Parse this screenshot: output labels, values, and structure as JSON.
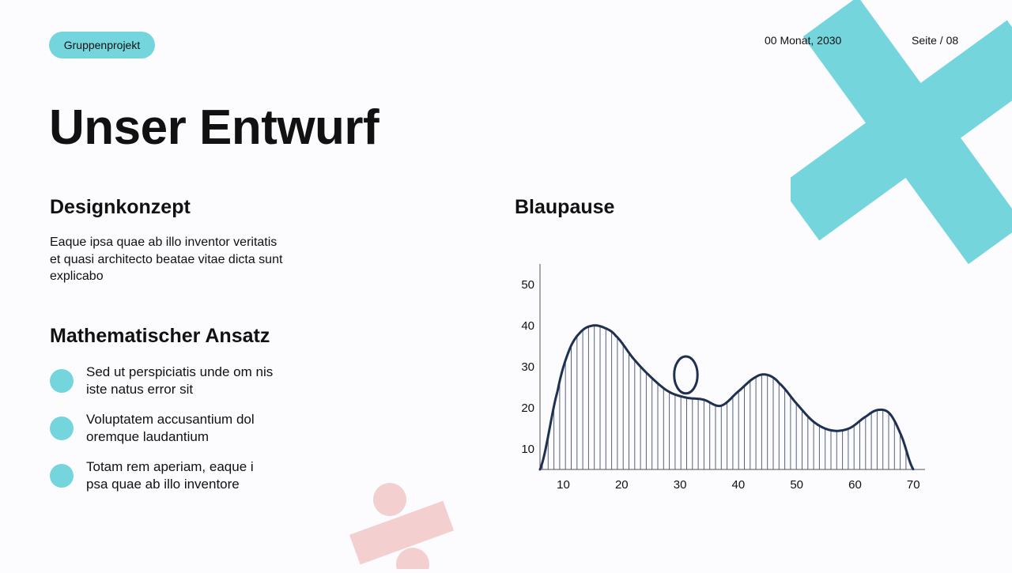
{
  "header": {
    "tag": "Gruppenprojekt",
    "date": "00 Monat, 2030",
    "page": "Seite / 08"
  },
  "title": "Unser Entwurf",
  "left": {
    "heading1": "Designkonzept",
    "paragraph": "Eaque ipsa quae ab illo inventor veritatis et quasi architecto beatae vitae dicta sunt explicabo",
    "heading2": "Mathematischer Ansatz",
    "bullets": [
      "Sed ut perspiciatis unde om nis iste natus error sit",
      "Voluptatem accusantium dol oremque laudantium",
      "Totam rem aperiam, eaque i psa quae ab illo inventore"
    ]
  },
  "right": {
    "heading": "Blaupause"
  },
  "colors": {
    "accent": "#74d5dd",
    "pink": "#f4cfcf",
    "curve": "#1f3050"
  },
  "chart_data": {
    "type": "line",
    "title": "",
    "xlabel": "",
    "ylabel": "",
    "xticks": [
      10,
      20,
      30,
      40,
      50,
      60,
      70
    ],
    "yticks": [
      10,
      20,
      30,
      40,
      50
    ],
    "xlim": [
      6,
      72
    ],
    "ylim": [
      5,
      55
    ],
    "grid": false,
    "vertical_lines": true,
    "series": [
      {
        "values": [
          [
            6,
            5
          ],
          [
            9,
            24
          ],
          [
            11,
            34
          ],
          [
            13,
            38.5
          ],
          [
            15,
            40
          ],
          [
            17,
            39.5
          ],
          [
            19,
            37.5
          ],
          [
            22,
            32
          ],
          [
            25,
            27.5
          ],
          [
            28,
            24
          ],
          [
            31,
            22.5
          ],
          [
            34,
            22
          ],
          [
            37,
            20.5
          ],
          [
            40,
            24
          ],
          [
            43,
            27.5
          ],
          [
            45,
            28
          ],
          [
            47,
            26
          ],
          [
            50,
            21
          ],
          [
            53,
            16.5
          ],
          [
            56,
            14.5
          ],
          [
            59,
            15
          ],
          [
            62,
            18
          ],
          [
            64,
            19.5
          ],
          [
            66,
            18.5
          ],
          [
            68,
            13
          ],
          [
            70,
            5
          ]
        ],
        "loop": {
          "x": 31,
          "y": 28,
          "rx": 2,
          "ry": 4.5
        }
      }
    ]
  }
}
